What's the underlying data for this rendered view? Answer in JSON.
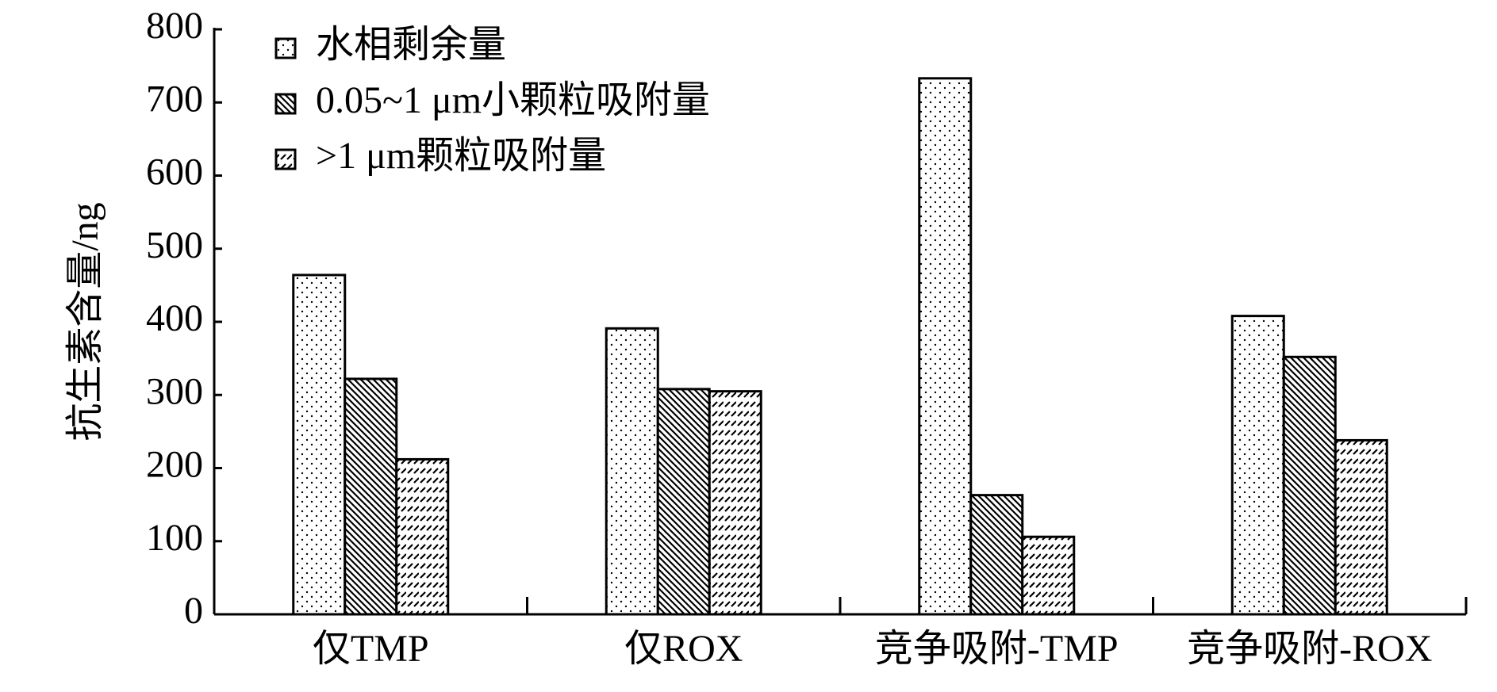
{
  "chart_data": {
    "type": "bar",
    "y_label": "抗生素含量/ng",
    "categories": [
      "仅TMP",
      "仅ROX",
      "竞争吸附-TMP",
      "竞争吸附-ROX"
    ],
    "series": [
      {
        "name": "水相剩余量",
        "color": "#000000",
        "pattern": "dots",
        "values": [
          464,
          391,
          733,
          408
        ]
      },
      {
        "name": "0.05~1 μm小颗粒吸附量",
        "color": "#000000",
        "pattern": "diagonal",
        "values": [
          322,
          308,
          163,
          352
        ]
      },
      {
        "name": ">1 μm颗粒吸附量",
        "color": "#000000",
        "pattern": "dashes",
        "values": [
          212,
          305,
          106,
          238
        ]
      }
    ],
    "ylim": [
      0,
      800
    ],
    "yticks": [
      0,
      100,
      200,
      300,
      400,
      500,
      600,
      700,
      800
    ],
    "grid": false,
    "legend": "top-left"
  }
}
